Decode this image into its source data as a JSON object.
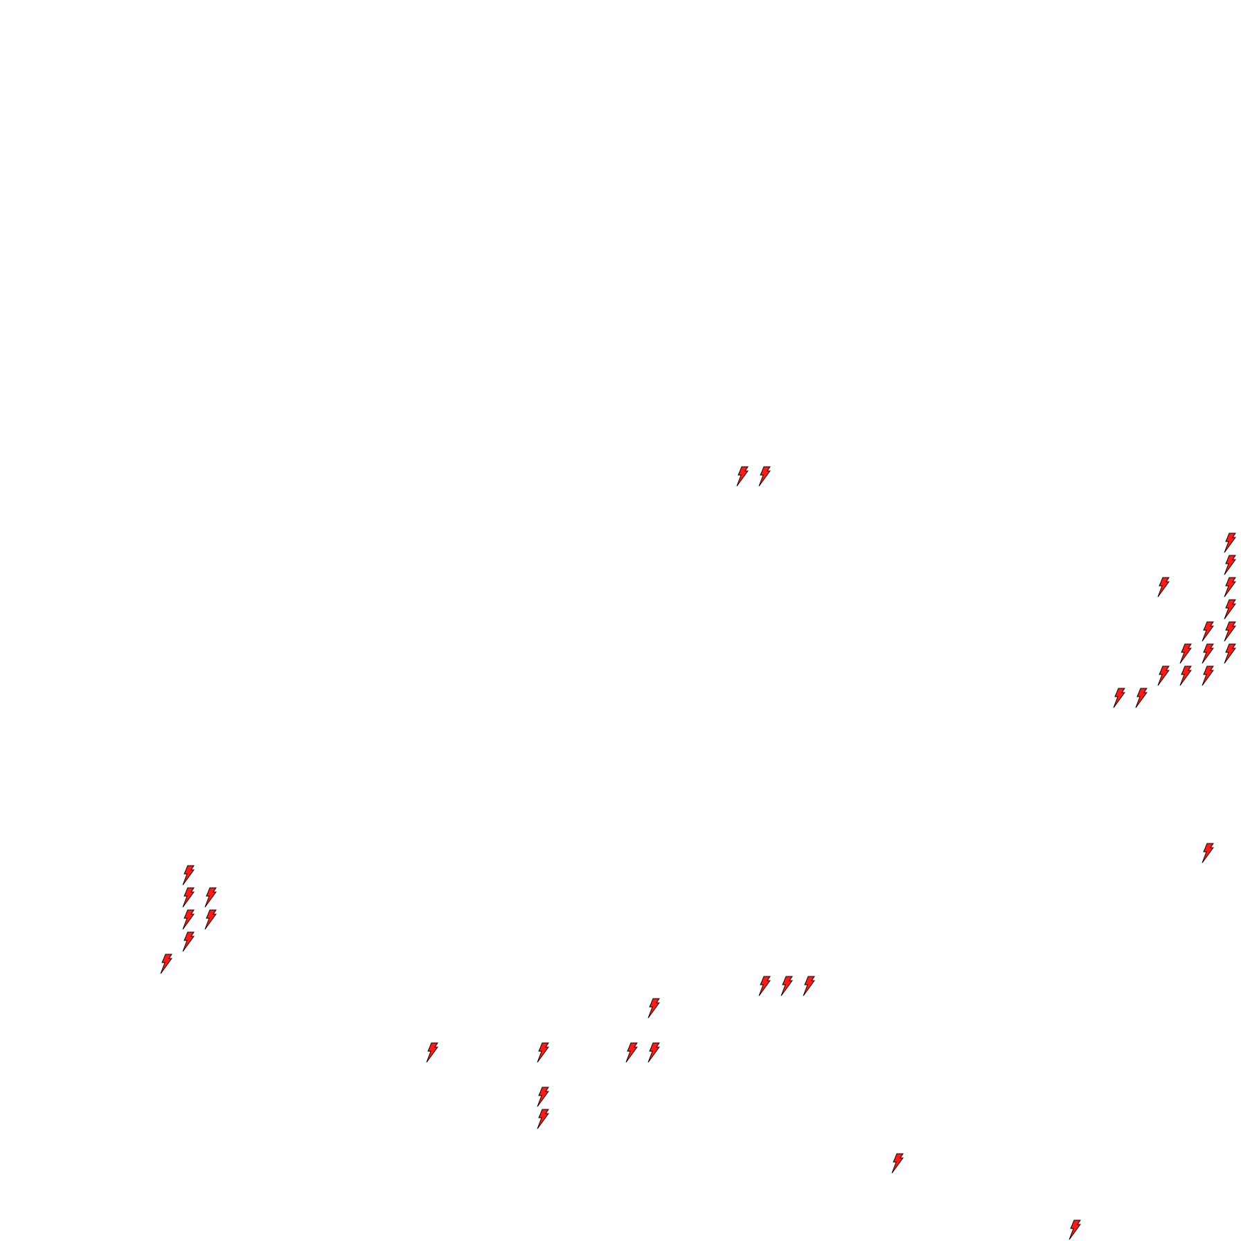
{
  "map": {
    "background": "#ffffff",
    "marker_icon": "lightning-bolt-icon",
    "marker_fill": "#ff1a1a",
    "marker_stroke": "#000000",
    "marker_count": 39
  }
}
